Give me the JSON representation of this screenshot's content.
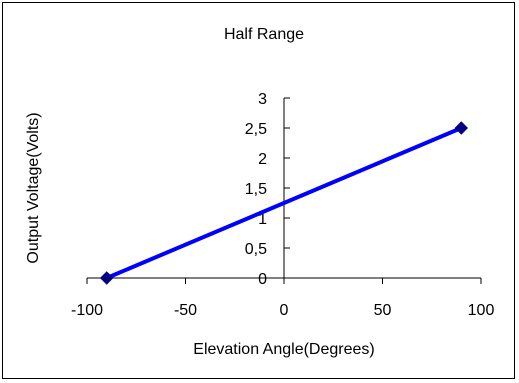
{
  "chart_data": {
    "type": "scatter",
    "title": "Half Range",
    "xlabel": "Elevation Angle(Degrees)",
    "ylabel": "Output Voltage(Volts)",
    "xlim": [
      -100,
      100
    ],
    "ylim": [
      0,
      3
    ],
    "x_ticks": [
      -100,
      -50,
      0,
      50,
      100
    ],
    "x_tick_labels": [
      "-100",
      "-50",
      "0",
      "50",
      "100"
    ],
    "y_ticks": [
      0,
      0.5,
      1,
      1.5,
      2,
      2.5,
      3
    ],
    "y_tick_labels": [
      "0",
      "0,5",
      "1",
      "1,5",
      "2",
      "2,5",
      "3"
    ],
    "grid": false,
    "legend": "none",
    "series": [
      {
        "x": [
          -90,
          90
        ],
        "y": [
          0,
          2.5
        ],
        "color": "#0000ff",
        "marker_color": "#000080",
        "marker": "diamond"
      }
    ]
  }
}
